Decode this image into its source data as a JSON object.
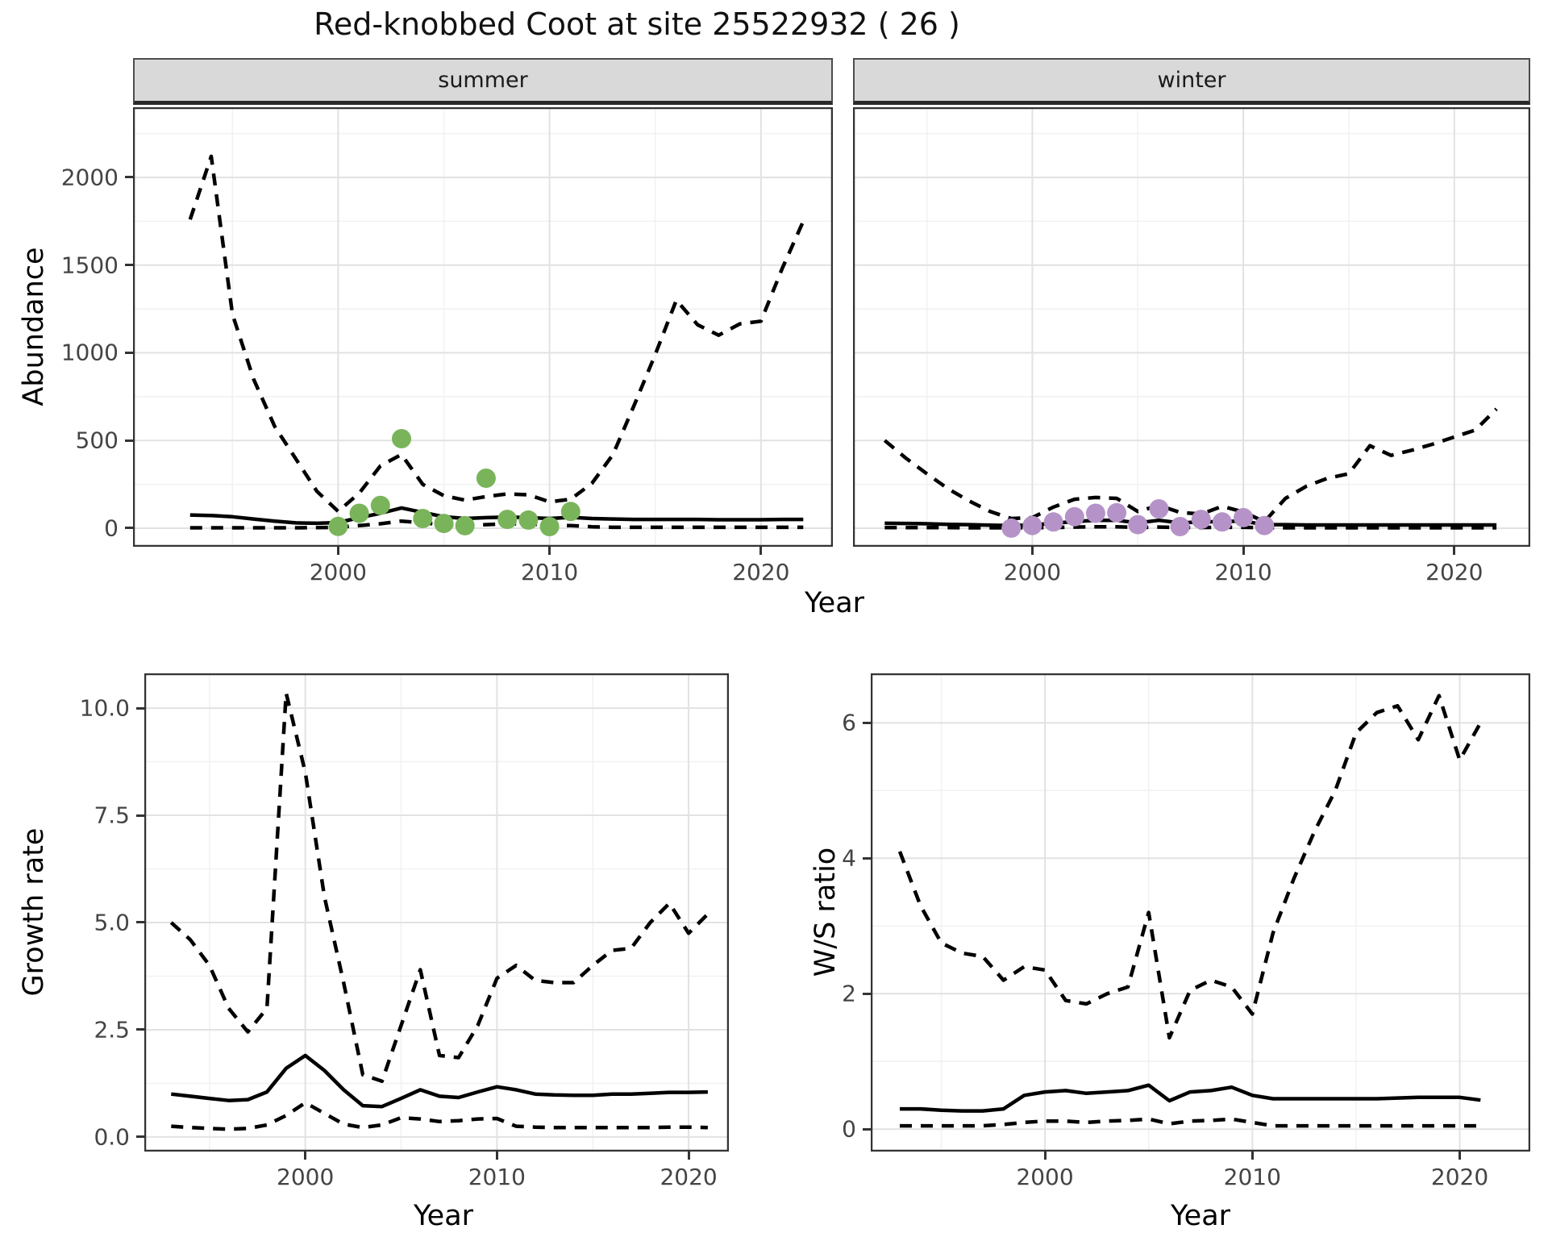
{
  "title": "Red-knobbed Coot at site 25522932 ( 26 )",
  "labels": {
    "facet_summer": "summer",
    "facet_winter": "winter",
    "y_abundance": "Abundance",
    "y_growth": "Growth rate",
    "y_ws": "W/S ratio",
    "x_year_top": "Year",
    "x_year_growth": "Year",
    "x_year_ws": "Year"
  },
  "colors": {
    "summer_points": "#7ab45a",
    "winter_points": "#b593c8",
    "line": "#000000",
    "grid_major": "#e2e2e2",
    "grid_minor": "#f1f1f1",
    "strip_bg": "#d9d9d9",
    "axis_text": "#444444",
    "panel_border": "#333333"
  },
  "chart_data": [
    {
      "id": "summer",
      "type": "line",
      "facet": "summer",
      "xlabel": "Year",
      "ylabel": "Abundance",
      "x": [
        1993,
        1994,
        1995,
        1996,
        1997,
        1998,
        1999,
        2000,
        2001,
        2002,
        2003,
        2004,
        2005,
        2006,
        2007,
        2008,
        2009,
        2010,
        2011,
        2012,
        2013,
        2014,
        2015,
        2016,
        2017,
        2018,
        2019,
        2020,
        2021,
        2022
      ],
      "series": [
        {
          "name": "upper_95ci",
          "style": "dashed",
          "values": [
            1760,
            2120,
            1220,
            850,
            580,
            395,
            210,
            96,
            200,
            355,
            420,
            250,
            185,
            160,
            180,
            195,
            190,
            150,
            165,
            255,
            420,
            700,
            990,
            1300,
            1160,
            1100,
            1165,
            1180,
            1480,
            1750
          ]
        },
        {
          "name": "median",
          "style": "solid",
          "values": [
            75,
            72,
            65,
            52,
            40,
            30,
            28,
            32,
            60,
            85,
            115,
            90,
            65,
            55,
            60,
            63,
            60,
            55,
            62,
            55,
            52,
            50,
            50,
            50,
            50,
            48,
            48,
            48,
            50,
            50
          ]
        },
        {
          "name": "lower_95ci",
          "style": "dashed",
          "values": [
            2,
            2,
            2,
            2,
            2,
            2,
            3,
            5,
            15,
            25,
            40,
            30,
            20,
            15,
            20,
            25,
            25,
            15,
            15,
            8,
            5,
            5,
            5,
            5,
            5,
            5,
            5,
            5,
            5,
            5
          ]
        }
      ],
      "points": {
        "color_key": "summer_points",
        "x": [
          2000,
          2001,
          2002,
          2003,
          2004,
          2005,
          2006,
          2007,
          2008,
          2009,
          2010,
          2011
        ],
        "y": [
          10,
          85,
          130,
          510,
          55,
          27,
          14,
          285,
          50,
          46,
          9,
          95
        ]
      },
      "axes": {
        "xlim": [
          1990.3,
          2023.4
        ],
        "ylim": [
          -106,
          2400
        ],
        "xticks": [
          {
            "v": 2000,
            "label": "2000"
          },
          {
            "v": 2010,
            "label": "2010"
          },
          {
            "v": 2020,
            "label": "2020"
          }
        ],
        "yticks": [
          {
            "v": 0,
            "label": "0"
          },
          {
            "v": 500,
            "label": "500"
          },
          {
            "v": 1000,
            "label": "1000"
          },
          {
            "v": 1500,
            "label": "1500"
          },
          {
            "v": 2000,
            "label": "2000"
          }
        ],
        "xminor": [
          1995,
          2005,
          2015
        ],
        "yminor": [
          250,
          750,
          1250,
          1750,
          2250
        ],
        "show_yticks": true
      }
    },
    {
      "id": "winter",
      "type": "line",
      "facet": "winter",
      "xlabel": "Year",
      "ylabel": "Abundance",
      "x": [
        1993,
        1994,
        1995,
        1996,
        1997,
        1998,
        1999,
        2000,
        2001,
        2002,
        2003,
        2004,
        2005,
        2006,
        2007,
        2008,
        2009,
        2010,
        2011,
        2012,
        2013,
        2014,
        2015,
        2016,
        2017,
        2018,
        2019,
        2020,
        2021,
        2022
      ],
      "series": [
        {
          "name": "upper_95ci",
          "style": "dashed",
          "values": [
            500,
            400,
            310,
            225,
            155,
            95,
            55,
            60,
            120,
            165,
            175,
            170,
            95,
            130,
            90,
            80,
            125,
            92,
            37,
            170,
            240,
            285,
            310,
            470,
            415,
            445,
            480,
            520,
            560,
            680
          ]
        },
        {
          "name": "median",
          "style": "solid",
          "values": [
            28,
            27,
            25,
            22,
            20,
            17,
            15,
            18,
            28,
            38,
            45,
            45,
            30,
            45,
            30,
            35,
            38,
            40,
            20,
            20,
            18,
            18,
            18,
            18,
            18,
            18,
            18,
            18,
            18,
            18
          ]
        },
        {
          "name": "lower_95ci",
          "style": "dashed",
          "values": [
            3,
            3,
            3,
            3,
            2,
            2,
            2,
            2,
            4,
            6,
            8,
            8,
            4,
            6,
            4,
            4,
            5,
            5,
            2,
            2,
            2,
            2,
            2,
            2,
            2,
            2,
            2,
            2,
            2,
            2
          ]
        }
      ],
      "points": {
        "color_key": "winter_points",
        "x": [
          1999,
          2000,
          2001,
          2002,
          2003,
          2004,
          2005,
          2006,
          2007,
          2008,
          2009,
          2010,
          2011
        ],
        "y": [
          0,
          15,
          35,
          65,
          85,
          88,
          20,
          110,
          9,
          50,
          35,
          60,
          15
        ]
      },
      "axes": {
        "xlim": [
          1991.5,
          2023.6
        ],
        "ylim": [
          -106,
          2400
        ],
        "xticks": [
          {
            "v": 2000,
            "label": "2000"
          },
          {
            "v": 2010,
            "label": "2010"
          },
          {
            "v": 2020,
            "label": "2020"
          }
        ],
        "yticks": [
          {
            "v": 0,
            "label": "0"
          },
          {
            "v": 500,
            "label": "500"
          },
          {
            "v": 1000,
            "label": "1000"
          },
          {
            "v": 1500,
            "label": "1500"
          },
          {
            "v": 2000,
            "label": "2000"
          }
        ],
        "xminor": [
          1995,
          2005,
          2015
        ],
        "yminor": [
          250,
          750,
          1250,
          1750,
          2250
        ],
        "show_yticks": false
      }
    },
    {
      "id": "growth",
      "type": "line",
      "facet": null,
      "xlabel": "Year",
      "ylabel": "Growth rate",
      "x": [
        1993,
        1994,
        1995,
        1996,
        1997,
        1998,
        1999,
        2000,
        2001,
        2002,
        2003,
        2004,
        2005,
        2006,
        2007,
        2008,
        2009,
        2010,
        2011,
        2012,
        2013,
        2014,
        2015,
        2016,
        2017,
        2018,
        2019,
        2020,
        2021
      ],
      "series": [
        {
          "name": "upper_95ci",
          "style": "dashed",
          "values": [
            5.0,
            4.6,
            4.0,
            3.0,
            2.45,
            3.0,
            10.35,
            8.5,
            5.6,
            3.6,
            1.45,
            1.3,
            2.6,
            3.9,
            1.9,
            1.85,
            2.6,
            3.7,
            4.0,
            3.65,
            3.6,
            3.6,
            4.0,
            4.35,
            4.4,
            5.0,
            5.45,
            4.75,
            5.2
          ]
        },
        {
          "name": "median",
          "style": "solid",
          "values": [
            1.0,
            0.95,
            0.9,
            0.85,
            0.87,
            1.05,
            1.6,
            1.9,
            1.55,
            1.1,
            0.73,
            0.71,
            0.9,
            1.1,
            0.95,
            0.92,
            1.05,
            1.17,
            1.1,
            1.0,
            0.98,
            0.97,
            0.97,
            1.0,
            1.0,
            1.02,
            1.04,
            1.04,
            1.05
          ]
        },
        {
          "name": "lower_95ci",
          "style": "dashed",
          "values": [
            0.25,
            0.22,
            0.2,
            0.18,
            0.2,
            0.28,
            0.5,
            0.8,
            0.55,
            0.3,
            0.22,
            0.28,
            0.45,
            0.42,
            0.36,
            0.38,
            0.42,
            0.43,
            0.25,
            0.23,
            0.22,
            0.22,
            0.22,
            0.22,
            0.22,
            0.22,
            0.23,
            0.23,
            0.22
          ]
        }
      ],
      "points": null,
      "axes": {
        "xlim": [
          1991.6,
          2022.1
        ],
        "ylim": [
          -0.34,
          10.81
        ],
        "xticks": [
          {
            "v": 2000,
            "label": "2000"
          },
          {
            "v": 2010,
            "label": "2010"
          },
          {
            "v": 2020,
            "label": "2020"
          }
        ],
        "yticks": [
          {
            "v": 0,
            "label": "0.0"
          },
          {
            "v": 2.5,
            "label": "2.5"
          },
          {
            "v": 5,
            "label": "5.0"
          },
          {
            "v": 7.5,
            "label": "7.5"
          },
          {
            "v": 10,
            "label": "10.0"
          }
        ],
        "xminor": [
          1995,
          2005,
          2015
        ],
        "yminor": [
          1.25,
          3.75,
          6.25,
          8.75
        ],
        "show_yticks": true
      }
    },
    {
      "id": "ws",
      "type": "line",
      "facet": null,
      "xlabel": "Year",
      "ylabel": "W/S ratio",
      "x": [
        1993,
        1994,
        1995,
        1996,
        1997,
        1998,
        1999,
        2000,
        2001,
        2002,
        2003,
        2004,
        2005,
        2006,
        2007,
        2008,
        2009,
        2010,
        2011,
        2012,
        2013,
        2014,
        2015,
        2016,
        2017,
        2018,
        2019,
        2020,
        2021
      ],
      "series": [
        {
          "name": "upper_95ci",
          "style": "dashed",
          "values": [
            4.1,
            3.3,
            2.75,
            2.6,
            2.55,
            2.2,
            2.4,
            2.35,
            1.9,
            1.85,
            2.0,
            2.1,
            3.2,
            1.35,
            2.05,
            2.2,
            2.1,
            1.7,
            2.9,
            3.7,
            4.4,
            5.0,
            5.85,
            6.15,
            6.25,
            5.75,
            6.4,
            5.45,
            6.0
          ]
        },
        {
          "name": "median",
          "style": "solid",
          "values": [
            0.3,
            0.3,
            0.28,
            0.27,
            0.27,
            0.3,
            0.5,
            0.55,
            0.57,
            0.53,
            0.55,
            0.57,
            0.65,
            0.42,
            0.55,
            0.57,
            0.62,
            0.5,
            0.45,
            0.45,
            0.45,
            0.45,
            0.45,
            0.45,
            0.46,
            0.47,
            0.47,
            0.47,
            0.43
          ]
        },
        {
          "name": "lower_95ci",
          "style": "dashed",
          "values": [
            0.05,
            0.05,
            0.05,
            0.05,
            0.05,
            0.07,
            0.1,
            0.12,
            0.12,
            0.1,
            0.12,
            0.13,
            0.15,
            0.08,
            0.12,
            0.13,
            0.15,
            0.1,
            0.05,
            0.05,
            0.05,
            0.05,
            0.05,
            0.05,
            0.05,
            0.05,
            0.05,
            0.05,
            0.05
          ]
        }
      ],
      "points": null,
      "axes": {
        "xlim": [
          1991.6,
          2023.4
        ],
        "ylim": [
          -0.33,
          6.73
        ],
        "xticks": [
          {
            "v": 2000,
            "label": "2000"
          },
          {
            "v": 2010,
            "label": "2010"
          },
          {
            "v": 2020,
            "label": "2020"
          }
        ],
        "yticks": [
          {
            "v": 0,
            "label": "0"
          },
          {
            "v": 2,
            "label": "2"
          },
          {
            "v": 4,
            "label": "4"
          },
          {
            "v": 6,
            "label": "6"
          }
        ],
        "xminor": [
          1995,
          2005,
          2015
        ],
        "yminor": [
          1,
          3,
          5
        ],
        "show_yticks": true
      }
    }
  ]
}
